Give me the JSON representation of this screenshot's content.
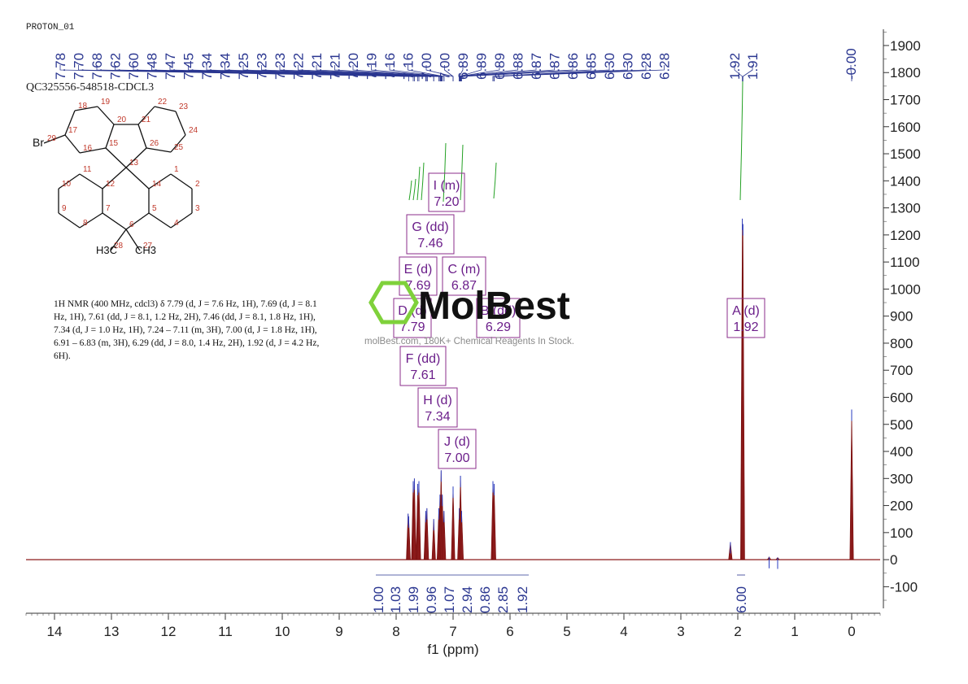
{
  "header": {
    "experiment": "PROTON_01",
    "sample": "QC325556-548518-CDCL3"
  },
  "molecule": {
    "atoms": [
      "1",
      "2",
      "3",
      "4",
      "5",
      "6",
      "7",
      "8",
      "9",
      "10",
      "11",
      "12",
      "13",
      "14",
      "15",
      "16",
      "17",
      "18",
      "19",
      "20",
      "21",
      "22",
      "23",
      "24",
      "25",
      "26",
      "27",
      "28",
      "29"
    ],
    "br_label": "Br",
    "h3c_label": "H3C",
    "ch3_label": "CH3"
  },
  "nmr_description": "1H NMR (400 MHz, cdcl3) δ 7.79 (d, J = 7.6 Hz, 1H), 7.69 (d, J = 8.1 Hz, 1H), 7.61 (dd, J = 8.1, 1.2 Hz, 2H), 7.46 (dd, J = 8.1, 1.8 Hz, 1H), 7.34 (d, J = 1.0 Hz, 1H), 7.24 – 7.11 (m, 3H), 7.00 (d, J = 1.8 Hz, 1H), 6.91 – 6.83 (m, 3H), 6.29 (dd, J = 8.0, 1.4 Hz, 2H), 1.92 (d, J = 4.2 Hz, 6H).",
  "watermark": {
    "brand": "MolBest",
    "subtitle": "molBest.com, 180K+ Chemical Reagents In Stock."
  },
  "chart_data": {
    "type": "line",
    "xlabel": "f1 (ppm)",
    "xlim": [
      14.5,
      -0.5
    ],
    "x_ticks": [
      14,
      13,
      12,
      11,
      10,
      9,
      8,
      7,
      6,
      5,
      4,
      3,
      2,
      1,
      0
    ],
    "ylim": [
      -180,
      1960
    ],
    "y_ticks": [
      -100,
      0,
      100,
      200,
      300,
      400,
      500,
      600,
      700,
      800,
      900,
      1000,
      1100,
      1200,
      1300,
      1400,
      1500,
      1600,
      1700,
      1800,
      1900
    ],
    "peak_labels": [
      "7.78",
      "7.70",
      "7.68",
      "7.62",
      "7.60",
      "7.48",
      "7.47",
      "7.45",
      "7.34",
      "7.34",
      "7.25",
      "7.23",
      "7.23",
      "7.22",
      "7.21",
      "7.21",
      "7.20",
      "7.19",
      "7.16",
      "7.16",
      "7.00",
      "7.00",
      "6.89",
      "6.89",
      "6.89",
      "6.88",
      "6.87",
      "6.87",
      "6.86",
      "6.85",
      "6.30",
      "6.30",
      "6.28",
      "6.28",
      "1.92",
      "1.91",
      "-0.00"
    ],
    "peaks": [
      {
        "ppm": 7.79,
        "height": 170
      },
      {
        "ppm": 7.78,
        "height": 160
      },
      {
        "ppm": 7.7,
        "height": 290
      },
      {
        "ppm": 7.68,
        "height": 300
      },
      {
        "ppm": 7.62,
        "height": 280
      },
      {
        "ppm": 7.6,
        "height": 290
      },
      {
        "ppm": 7.48,
        "height": 180
      },
      {
        "ppm": 7.46,
        "height": 190
      },
      {
        "ppm": 7.34,
        "height": 150
      },
      {
        "ppm": 7.25,
        "height": 190
      },
      {
        "ppm": 7.23,
        "height": 240
      },
      {
        "ppm": 7.21,
        "height": 330
      },
      {
        "ppm": 7.19,
        "height": 240
      },
      {
        "ppm": 7.16,
        "height": 180
      },
      {
        "ppm": 7.0,
        "height": 270
      },
      {
        "ppm": 6.89,
        "height": 190
      },
      {
        "ppm": 6.87,
        "height": 310
      },
      {
        "ppm": 6.85,
        "height": 180
      },
      {
        "ppm": 6.3,
        "height": 290
      },
      {
        "ppm": 6.28,
        "height": 280
      },
      {
        "ppm": 2.13,
        "height": 65
      },
      {
        "ppm": 1.92,
        "height": 1260
      },
      {
        "ppm": 1.91,
        "height": 1240
      },
      {
        "ppm": 1.45,
        "height": 10
      },
      {
        "ppm": 1.3,
        "height": 8
      },
      {
        "ppm": 0.0,
        "height": 555
      }
    ],
    "multiplets": [
      {
        "label": "I (m)",
        "value": "7.20",
        "ppm": 7.2
      },
      {
        "label": "G (dd)",
        "value": "7.46",
        "ppm": 7.46
      },
      {
        "label": "E (d)",
        "value": "7.69",
        "ppm": 7.69
      },
      {
        "label": "C (m)",
        "value": "6.87",
        "ppm": 6.87
      },
      {
        "label": "D (d)",
        "value": "7.79",
        "ppm": 7.79
      },
      {
        "label": "B (dd)",
        "value": "6.29",
        "ppm": 6.29
      },
      {
        "label": "F (dd)",
        "value": "7.61",
        "ppm": 7.61
      },
      {
        "label": "H (d)",
        "value": "7.34",
        "ppm": 7.34
      },
      {
        "label": "J (d)",
        "value": "7.00",
        "ppm": 7.0
      },
      {
        "label": "A (d)",
        "value": "1.92",
        "ppm": 1.92
      }
    ],
    "integrals": [
      "1.00",
      "1.03",
      "1.99",
      "0.96",
      "1.07",
      "2.94",
      "0.86",
      "2.85",
      "1.92",
      "6.00"
    ]
  }
}
